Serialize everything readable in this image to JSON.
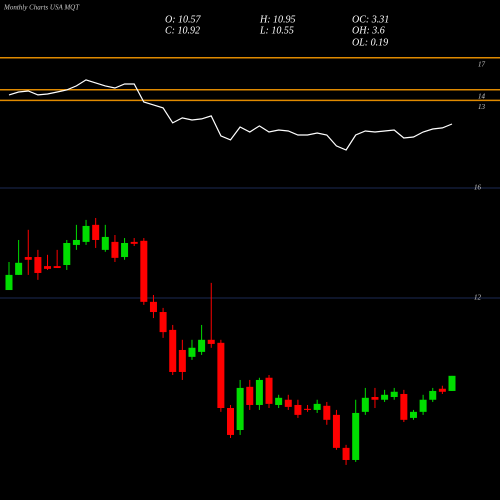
{
  "chart_data": {
    "type": "candlestick",
    "title": "Monthly Charts USA MQT",
    "stats": [
      "O: 10.57",
      "H: 10.95",
      "OC: 3.31",
      "C: 10.92",
      "L: 10.55",
      "OH: 3.6",
      "OL: 0.19"
    ],
    "up_color": "#00dd00",
    "down_color": "#ff0000",
    "grid_color": "#1c2a55",
    "ylim": [
      5,
      17.4
    ],
    "yticks": [
      16,
      12
    ],
    "open": [
      12.29,
      12.84,
      13.49,
      13.49,
      13.16,
      13.16,
      13.2,
      13.93,
      14.04,
      14.66,
      13.75,
      14.04,
      13.49,
      14.04,
      14.08,
      11.86,
      11.49,
      10.84,
      10.11,
      9.86,
      10.04,
      10.48,
      10.37,
      8.0,
      7.2,
      8.77,
      8.11,
      9.1,
      8.11,
      8.3,
      8.11,
      7.97,
      7.93,
      8.08,
      7.75,
      6.55,
      6.11,
      7.86,
      8.4,
      8.3,
      8.4,
      8.51,
      7.64,
      7.86,
      8.3,
      8.7,
      8.62
    ],
    "high": [
      13.31,
      14.11,
      14.48,
      13.75,
      13.57,
      13.75,
      14.11,
      14.66,
      14.84,
      14.91,
      14.66,
      14.29,
      14.18,
      14.18,
      14.18,
      12.11,
      11.64,
      11.02,
      10.48,
      10.48,
      11.02,
      12.55,
      10.48,
      8.11,
      9.02,
      9.02,
      9.1,
      9.2,
      8.48,
      8.48,
      8.3,
      8.11,
      8.3,
      8.22,
      7.93,
      6.66,
      8.3,
      8.73,
      8.73,
      8.66,
      8.73,
      8.66,
      7.93,
      8.48,
      8.73,
      8.81,
      9.17
    ],
    "low": [
      12.29,
      12.84,
      12.84,
      12.66,
      13.02,
      13.09,
      13.02,
      13.75,
      13.93,
      13.82,
      13.68,
      13.31,
      13.39,
      13.89,
      11.75,
      11.27,
      10.55,
      9.2,
      9.02,
      9.75,
      9.93,
      10.19,
      7.86,
      6.91,
      7.02,
      7.93,
      7.93,
      8.0,
      8.0,
      7.93,
      7.64,
      7.86,
      7.82,
      7.39,
      6.48,
      5.93,
      6.04,
      7.75,
      8.0,
      8.22,
      8.3,
      7.49,
      7.57,
      7.75,
      8.22,
      8.51,
      8.62
    ],
    "close": [
      12.84,
      13.28,
      13.39,
      12.91,
      13.06,
      13.09,
      14.0,
      14.11,
      14.62,
      14.11,
      14.22,
      13.46,
      14.0,
      13.97,
      11.86,
      11.49,
      10.76,
      9.31,
      9.31,
      10.19,
      10.48,
      10.33,
      8.0,
      7.02,
      8.73,
      8.11,
      9.02,
      8.15,
      8.37,
      8.04,
      7.75,
      7.93,
      8.15,
      7.57,
      6.55,
      6.11,
      7.82,
      8.37,
      8.3,
      8.48,
      8.59,
      7.57,
      7.86,
      8.3,
      8.62,
      8.59,
      9.17
    ],
    "indicator": {
      "type": "line",
      "color": "#ffffff",
      "level_color": "#e08a00",
      "ylim": [
        7.4,
        18.2
      ],
      "yticks": [
        17,
        14,
        13
      ],
      "values": [
        13.51,
        13.79,
        13.88,
        13.51,
        13.6,
        13.79,
        13.98,
        14.36,
        14.92,
        14.64,
        14.36,
        14.16,
        14.54,
        14.54,
        12.85,
        12.57,
        12.29,
        10.88,
        11.35,
        11.16,
        11.26,
        11.54,
        9.66,
        9.29,
        10.5,
        10.03,
        10.6,
        10.03,
        10.22,
        10.12,
        9.75,
        9.75,
        9.94,
        9.75,
        8.72,
        8.34,
        9.75,
        10.12,
        10.03,
        10.12,
        10.22,
        9.47,
        9.56,
        10.03,
        10.31,
        10.41,
        10.78
      ]
    }
  }
}
